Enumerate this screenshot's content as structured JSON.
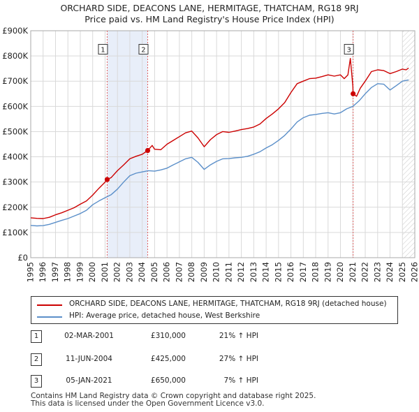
{
  "title_line1": "ORCHARD SIDE, DEACONS LANE, HERMITAGE, THATCHAM, RG18 9RJ",
  "title_line2": "Price paid vs. HM Land Registry's House Price Index (HPI)",
  "chart_data": {
    "type": "line",
    "title": "ORCHARD SIDE, DEACONS LANE, HERMITAGE, THATCHAM, RG18 9RJ — Price paid vs. HM Land Registry's House Price Index (HPI)",
    "xlim": [
      1995,
      2026
    ],
    "ylim": [
      0,
      900000
    ],
    "x_ticks": [
      1995,
      1996,
      1997,
      1998,
      1999,
      2000,
      2001,
      2002,
      2003,
      2004,
      2005,
      2006,
      2007,
      2008,
      2009,
      2010,
      2011,
      2012,
      2013,
      2014,
      2015,
      2016,
      2017,
      2018,
      2019,
      2020,
      2021,
      2022,
      2023,
      2024,
      2025,
      2026
    ],
    "y_ticks": [
      {
        "value": 0,
        "label": "£0"
      },
      {
        "value": 100000,
        "label": "£100K"
      },
      {
        "value": 200000,
        "label": "£200K"
      },
      {
        "value": 300000,
        "label": "£300K"
      },
      {
        "value": 400000,
        "label": "£400K"
      },
      {
        "value": 500000,
        "label": "£500K"
      },
      {
        "value": 600000,
        "label": "£600K"
      },
      {
        "value": 700000,
        "label": "£700K"
      },
      {
        "value": 800000,
        "label": "£800K"
      },
      {
        "value": 900000,
        "label": "£900K"
      }
    ],
    "grid": true,
    "shaded_periods": [
      [
        2001.17,
        2004.44
      ]
    ],
    "forecast_from": 2025.0,
    "series": [
      {
        "name": "ORCHARD SIDE, DEACONS LANE, HERMITAGE, THATCHAM, RG18 9RJ (detached house)",
        "color": "#cc0000",
        "points": [
          [
            1995.0,
            158000
          ],
          [
            1995.5,
            156000
          ],
          [
            1996.0,
            155000
          ],
          [
            1996.5,
            160000
          ],
          [
            1997.0,
            170000
          ],
          [
            1997.5,
            178000
          ],
          [
            1998.0,
            188000
          ],
          [
            1998.5,
            198000
          ],
          [
            1999.0,
            212000
          ],
          [
            1999.5,
            225000
          ],
          [
            2000.0,
            248000
          ],
          [
            2000.5,
            275000
          ],
          [
            2001.0,
            300000
          ],
          [
            2001.17,
            310000
          ],
          [
            2001.5,
            318000
          ],
          [
            2002.0,
            345000
          ],
          [
            2002.5,
            368000
          ],
          [
            2003.0,
            392000
          ],
          [
            2003.5,
            402000
          ],
          [
            2004.0,
            410000
          ],
          [
            2004.44,
            425000
          ],
          [
            2004.8,
            445000
          ],
          [
            2005.0,
            430000
          ],
          [
            2005.5,
            428000
          ],
          [
            2006.0,
            450000
          ],
          [
            2006.5,
            465000
          ],
          [
            2007.0,
            480000
          ],
          [
            2007.5,
            495000
          ],
          [
            2008.0,
            502000
          ],
          [
            2008.5,
            475000
          ],
          [
            2009.0,
            440000
          ],
          [
            2009.5,
            468000
          ],
          [
            2010.0,
            488000
          ],
          [
            2010.5,
            500000
          ],
          [
            2011.0,
            497000
          ],
          [
            2011.5,
            502000
          ],
          [
            2012.0,
            508000
          ],
          [
            2012.5,
            512000
          ],
          [
            2013.0,
            518000
          ],
          [
            2013.5,
            530000
          ],
          [
            2014.0,
            552000
          ],
          [
            2014.5,
            570000
          ],
          [
            2015.0,
            590000
          ],
          [
            2015.5,
            615000
          ],
          [
            2016.0,
            655000
          ],
          [
            2016.5,
            690000
          ],
          [
            2017.0,
            700000
          ],
          [
            2017.5,
            710000
          ],
          [
            2018.0,
            712000
          ],
          [
            2018.5,
            718000
          ],
          [
            2019.0,
            725000
          ],
          [
            2019.5,
            720000
          ],
          [
            2020.0,
            725000
          ],
          [
            2020.3,
            710000
          ],
          [
            2020.6,
            725000
          ],
          [
            2020.8,
            790000
          ],
          [
            2021.0,
            680000
          ],
          [
            2021.02,
            650000
          ],
          [
            2021.3,
            640000
          ],
          [
            2021.6,
            672000
          ],
          [
            2022.0,
            700000
          ],
          [
            2022.5,
            738000
          ],
          [
            2023.0,
            745000
          ],
          [
            2023.5,
            742000
          ],
          [
            2024.0,
            730000
          ],
          [
            2024.5,
            738000
          ],
          [
            2025.0,
            748000
          ],
          [
            2025.3,
            745000
          ],
          [
            2025.5,
            752000
          ]
        ]
      },
      {
        "name": "HPI: Average price, detached house, West Berkshire",
        "color": "#5b8fc9",
        "points": [
          [
            1995.0,
            128000
          ],
          [
            1995.5,
            126000
          ],
          [
            1996.0,
            127000
          ],
          [
            1996.5,
            132000
          ],
          [
            1997.0,
            140000
          ],
          [
            1997.5,
            148000
          ],
          [
            1998.0,
            155000
          ],
          [
            1998.5,
            165000
          ],
          [
            1999.0,
            175000
          ],
          [
            1999.5,
            188000
          ],
          [
            2000.0,
            210000
          ],
          [
            2000.5,
            225000
          ],
          [
            2001.0,
            238000
          ],
          [
            2001.5,
            250000
          ],
          [
            2002.0,
            272000
          ],
          [
            2002.5,
            300000
          ],
          [
            2003.0,
            325000
          ],
          [
            2003.5,
            335000
          ],
          [
            2004.0,
            340000
          ],
          [
            2004.5,
            345000
          ],
          [
            2005.0,
            343000
          ],
          [
            2005.5,
            348000
          ],
          [
            2006.0,
            355000
          ],
          [
            2006.5,
            368000
          ],
          [
            2007.0,
            380000
          ],
          [
            2007.5,
            392000
          ],
          [
            2008.0,
            398000
          ],
          [
            2008.5,
            378000
          ],
          [
            2009.0,
            350000
          ],
          [
            2009.5,
            368000
          ],
          [
            2010.0,
            382000
          ],
          [
            2010.5,
            392000
          ],
          [
            2011.0,
            393000
          ],
          [
            2011.5,
            396000
          ],
          [
            2012.0,
            398000
          ],
          [
            2012.5,
            402000
          ],
          [
            2013.0,
            410000
          ],
          [
            2013.5,
            420000
          ],
          [
            2014.0,
            435000
          ],
          [
            2014.5,
            448000
          ],
          [
            2015.0,
            465000
          ],
          [
            2015.5,
            485000
          ],
          [
            2016.0,
            510000
          ],
          [
            2016.5,
            538000
          ],
          [
            2017.0,
            555000
          ],
          [
            2017.5,
            565000
          ],
          [
            2018.0,
            568000
          ],
          [
            2018.5,
            572000
          ],
          [
            2019.0,
            575000
          ],
          [
            2019.5,
            570000
          ],
          [
            2020.0,
            575000
          ],
          [
            2020.5,
            590000
          ],
          [
            2021.0,
            600000
          ],
          [
            2021.5,
            622000
          ],
          [
            2022.0,
            650000
          ],
          [
            2022.5,
            675000
          ],
          [
            2023.0,
            690000
          ],
          [
            2023.5,
            688000
          ],
          [
            2024.0,
            665000
          ],
          [
            2024.5,
            682000
          ],
          [
            2025.0,
            700000
          ],
          [
            2025.5,
            705000
          ]
        ]
      }
    ],
    "annotations": [
      {
        "label": "1",
        "x": 2001.17,
        "y": 310000
      },
      {
        "label": "2",
        "x": 2004.44,
        "y": 425000
      },
      {
        "label": "3",
        "x": 2021.02,
        "y": 650000
      }
    ]
  },
  "legend": {
    "property_label": "ORCHARD SIDE, DEACONS LANE, HERMITAGE, THATCHAM, RG18 9RJ (detached house)",
    "hpi_label": "HPI: Average price, detached house, West Berkshire"
  },
  "transactions": [
    {
      "num": "1",
      "date": "02-MAR-2001",
      "price": "£310,000",
      "hpi": "21% ↑ HPI"
    },
    {
      "num": "2",
      "date": "11-JUN-2004",
      "price": "£425,000",
      "hpi": "27% ↑ HPI"
    },
    {
      "num": "3",
      "date": "05-JAN-2021",
      "price": "£650,000",
      "hpi": "7% ↑ HPI"
    }
  ],
  "footer": {
    "line1": "Contains HM Land Registry data © Crown copyright and database right 2025.",
    "line2": "This data is licensed under the Open Government Licence v3.0."
  },
  "colors": {
    "property_line": "#cc0000",
    "hpi_line": "#5b8fc9",
    "shade": "#e8eef9",
    "grid": "#d9d9d9"
  }
}
